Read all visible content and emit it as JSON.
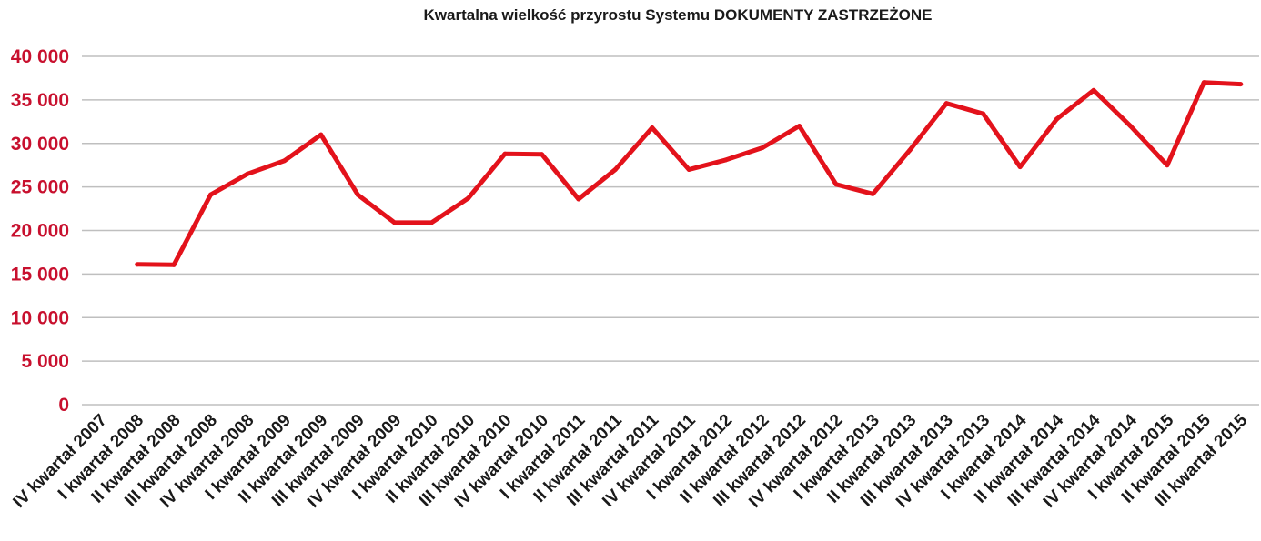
{
  "chart_data": {
    "type": "line",
    "title": "Kwartalna wielkość przyrostu Systemu DOKUMENTY ZASTRZEŻONE",
    "xlabel": "",
    "ylabel": "",
    "ylim": [
      0,
      40000
    ],
    "yticks": [
      0,
      5000,
      10000,
      15000,
      20000,
      25000,
      30000,
      35000,
      40000
    ],
    "ytick_labels": [
      "0",
      "5 000",
      "10 000",
      "15 000",
      "20 000",
      "25 000",
      "30 000",
      "35 000",
      "40 000"
    ],
    "grid": true,
    "legend": "none",
    "categories": [
      "IV kwartał 2007",
      "I kwartał 2008",
      "II kwartał 2008",
      "III kwartał 2008",
      "IV kwartał 2008",
      "I kwartał 2009",
      "II kwartał 2009",
      "III kwartał 2009",
      "IV kwartał 2009",
      "I kwartał 2010",
      "II kwartał 2010",
      "III kwartał 2010",
      "IV kwartał 2010",
      "I kwartał 2011",
      "II kwartał 2011",
      "III kwartał 2011",
      "IV kwartał 2011",
      "I kwartał 2012",
      "II kwartał 2012",
      "III kwartał 2012",
      "IV kwartał 2012",
      "I kwartał 2013",
      "II kwartał 2013",
      "III kwartał 2013",
      "IV kwartał 2013",
      "I kwartał 2014",
      "II kwartał 2014",
      "III kwartał 2014",
      "IV kwartał 2014",
      "I kwartał 2015",
      "II kwartał 2015",
      "III kwartał 2015"
    ],
    "series": [
      {
        "values": [
          null,
          16100,
          16050,
          24100,
          26500,
          28000,
          31000,
          24100,
          20900,
          20900,
          23700,
          28800,
          28750,
          23600,
          27000,
          31800,
          27000,
          28100,
          29500,
          32000,
          25300,
          24200,
          29200,
          34600,
          33400,
          27300,
          32800,
          36100,
          32000,
          27500,
          37000,
          36800
        ]
      }
    ],
    "colors": {
      "line": "#e3121b",
      "ytick": "#c8102e",
      "grid": "#bfbfbf"
    }
  }
}
